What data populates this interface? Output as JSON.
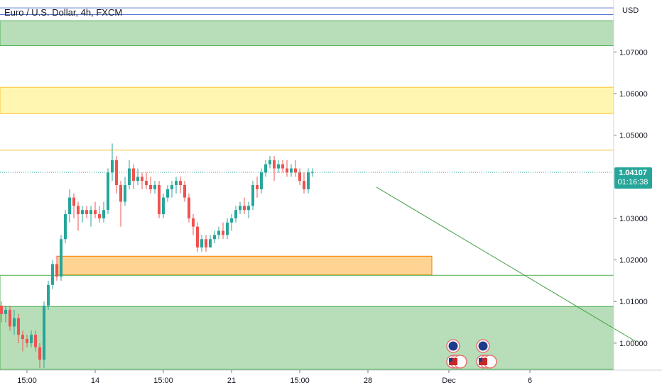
{
  "header": {
    "title": "Euro / U.S. Dollar, 4h, FXCM"
  },
  "chart_data": {
    "type": "candlestick",
    "title": "Euro / U.S. Dollar, 4h, FXCM",
    "currency": "USD",
    "y_range": [
      0.9935,
      1.0825
    ],
    "y_ticks": [
      {
        "value": 1.07,
        "label": "1.07000"
      },
      {
        "value": 1.06,
        "label": "1.06000"
      },
      {
        "value": 1.05,
        "label": "1.05000"
      },
      {
        "value": 1.03,
        "label": "1.03000"
      },
      {
        "value": 1.02,
        "label": "1.02000"
      },
      {
        "value": 1.01,
        "label": "1.01000"
      },
      {
        "value": 1.0,
        "label": "1.00000"
      }
    ],
    "x_ticks": [
      {
        "bar": 6,
        "label": "15:00"
      },
      {
        "bar": 22,
        "label": "14"
      },
      {
        "bar": 38,
        "label": "15:00"
      },
      {
        "bar": 54,
        "label": "21"
      },
      {
        "bar": 70,
        "label": "15:00"
      },
      {
        "bar": 86,
        "label": "28"
      },
      {
        "bar": 105,
        "label": "Dec"
      },
      {
        "bar": 124,
        "label": "6"
      }
    ],
    "last_price": {
      "value": 1.04107,
      "label": "1.04107",
      "countdown": "01:16:38"
    },
    "colors": {
      "up": "#26a69a",
      "down": "#ef5350",
      "zone_green": "#a5d6a7",
      "zone_yellow": "#fff59d",
      "zone_orange": "#ffcc80"
    },
    "candles": [
      [
        1.009,
        1.01,
        1.005,
        1.007
      ],
      [
        1.007,
        1.009,
        1.005,
        1.008
      ],
      [
        1.008,
        1.009,
        1.003,
        1.004
      ],
      [
        1.004,
        1.008,
        1.002,
        1.006
      ],
      [
        1.006,
        1.007,
        1.0,
        1.002
      ],
      [
        1.002,
        1.003,
        0.998,
        1.001
      ],
      [
        1.001,
        1.002,
        0.999,
        1.0
      ],
      [
        1.0,
        1.003,
        0.999,
        1.002
      ],
      [
        1.002,
        1.003,
        0.998,
        0.999
      ],
      [
        0.999,
        1.0,
        0.994,
        0.996
      ],
      [
        0.996,
        1.01,
        0.994,
        1.009
      ],
      [
        1.009,
        1.015,
        1.008,
        1.014
      ],
      [
        1.014,
        1.02,
        1.013,
        1.019
      ],
      [
        1.019,
        1.021,
        1.015,
        1.016
      ],
      [
        1.016,
        1.026,
        1.015,
        1.025
      ],
      [
        1.025,
        1.032,
        1.024,
        1.031
      ],
      [
        1.031,
        1.037,
        1.029,
        1.035
      ],
      [
        1.035,
        1.036,
        1.03,
        1.033
      ],
      [
        1.033,
        1.034,
        1.027,
        1.031
      ],
      [
        1.031,
        1.033,
        1.029,
        1.032
      ],
      [
        1.032,
        1.033,
        1.03,
        1.031
      ],
      [
        1.031,
        1.033,
        1.028,
        1.032
      ],
      [
        1.032,
        1.034,
        1.03,
        1.031
      ],
      [
        1.031,
        1.033,
        1.029,
        1.03
      ],
      [
        1.03,
        1.034,
        1.029,
        1.032
      ],
      [
        1.032,
        1.042,
        1.031,
        1.041
      ],
      [
        1.041,
        1.048,
        1.039,
        1.044
      ],
      [
        1.044,
        1.045,
        1.036,
        1.038
      ],
      [
        1.038,
        1.039,
        1.028,
        1.034
      ],
      [
        1.034,
        1.04,
        1.033,
        1.038
      ],
      [
        1.038,
        1.044,
        1.037,
        1.042
      ],
      [
        1.042,
        1.043,
        1.037,
        1.039
      ],
      [
        1.039,
        1.042,
        1.038,
        1.04
      ],
      [
        1.04,
        1.041,
        1.037,
        1.039
      ],
      [
        1.039,
        1.041,
        1.037,
        1.038
      ],
      [
        1.038,
        1.04,
        1.036,
        1.037
      ],
      [
        1.037,
        1.039,
        1.036,
        1.038
      ],
      [
        1.038,
        1.039,
        1.03,
        1.031
      ],
      [
        1.031,
        1.036,
        1.03,
        1.035
      ],
      [
        1.035,
        1.038,
        1.034,
        1.037
      ],
      [
        1.037,
        1.039,
        1.035,
        1.038
      ],
      [
        1.038,
        1.04,
        1.036,
        1.039
      ],
      [
        1.039,
        1.04,
        1.036,
        1.038
      ],
      [
        1.038,
        1.039,
        1.034,
        1.035
      ],
      [
        1.035,
        1.036,
        1.029,
        1.03
      ],
      [
        1.03,
        1.031,
        1.026,
        1.028
      ],
      [
        1.028,
        1.029,
        1.022,
        1.023
      ],
      [
        1.023,
        1.026,
        1.022,
        1.025
      ],
      [
        1.025,
        1.026,
        1.022,
        1.023
      ],
      [
        1.023,
        1.026,
        1.023,
        1.025
      ],
      [
        1.025,
        1.027,
        1.024,
        1.026
      ],
      [
        1.026,
        1.028,
        1.025,
        1.027
      ],
      [
        1.027,
        1.029,
        1.025,
        1.026
      ],
      [
        1.026,
        1.03,
        1.025,
        1.029
      ],
      [
        1.029,
        1.031,
        1.027,
        1.03
      ],
      [
        1.03,
        1.033,
        1.029,
        1.032
      ],
      [
        1.032,
        1.034,
        1.031,
        1.033
      ],
      [
        1.033,
        1.035,
        1.031,
        1.032
      ],
      [
        1.032,
        1.034,
        1.03,
        1.033
      ],
      [
        1.033,
        1.039,
        1.032,
        1.038
      ],
      [
        1.038,
        1.04,
        1.035,
        1.037
      ],
      [
        1.037,
        1.042,
        1.036,
        1.041
      ],
      [
        1.041,
        1.044,
        1.04,
        1.043
      ],
      [
        1.043,
        1.045,
        1.042,
        1.044
      ],
      [
        1.044,
        1.045,
        1.039,
        1.042
      ],
      [
        1.042,
        1.044,
        1.041,
        1.043
      ],
      [
        1.043,
        1.044,
        1.041,
        1.042
      ],
      [
        1.042,
        1.044,
        1.04,
        1.041
      ],
      [
        1.041,
        1.043,
        1.04,
        1.042
      ],
      [
        1.042,
        1.044,
        1.04,
        1.041
      ],
      [
        1.041,
        1.042,
        1.038,
        1.039
      ],
      [
        1.039,
        1.041,
        1.036,
        1.037
      ],
      [
        1.037,
        1.042,
        1.036,
        1.041
      ],
      [
        1.041,
        1.042,
        1.04,
        1.0411
      ]
    ],
    "zones": [
      {
        "name": "green-supply-zone",
        "y_top": 1.0775,
        "y_bottom": 1.0715,
        "x_start_bar": -4,
        "x_end_bar": 149,
        "color": "zone_green"
      },
      {
        "name": "yellow-zone",
        "y_top": 1.0615,
        "y_bottom": 1.0552,
        "x_start_bar": -4,
        "x_end_bar": 149,
        "color": "zone_yellow"
      },
      {
        "name": "orange-demand-zone",
        "y_top": 1.0209,
        "y_bottom": 1.0164,
        "x_start_bar": 13,
        "x_end_bar": 101,
        "color": "zone_orange"
      },
      {
        "name": "green-demand-zone",
        "y_top": 1.0163,
        "y_bottom": 0.9937,
        "x_start_bar": -1,
        "x_end_bar": 149,
        "color": "zone_green",
        "outline_only_above": 1.0088
      },
      {
        "name": "green-lower-zone",
        "y_top": 1.0088,
        "y_bottom": 0.9937,
        "x_start_bar": -1,
        "x_end_bar": 149,
        "color": "zone_green"
      }
    ],
    "horizontal_lines": [
      {
        "value": 1.0806,
        "color": "#5b7bd5"
      },
      {
        "value": 1.079,
        "color": "#5b7bd5"
      },
      {
        "value": 1.0464,
        "color": "#fbc02d"
      }
    ],
    "trend_line": {
      "x1_bar": 88,
      "y1": 1.0375,
      "x2_bar": 149,
      "y2": 1.0003,
      "color": "#43a047"
    },
    "event_icons": [
      {
        "bar": 106,
        "stack": 2
      },
      {
        "bar": 113,
        "stack": 2
      }
    ]
  }
}
